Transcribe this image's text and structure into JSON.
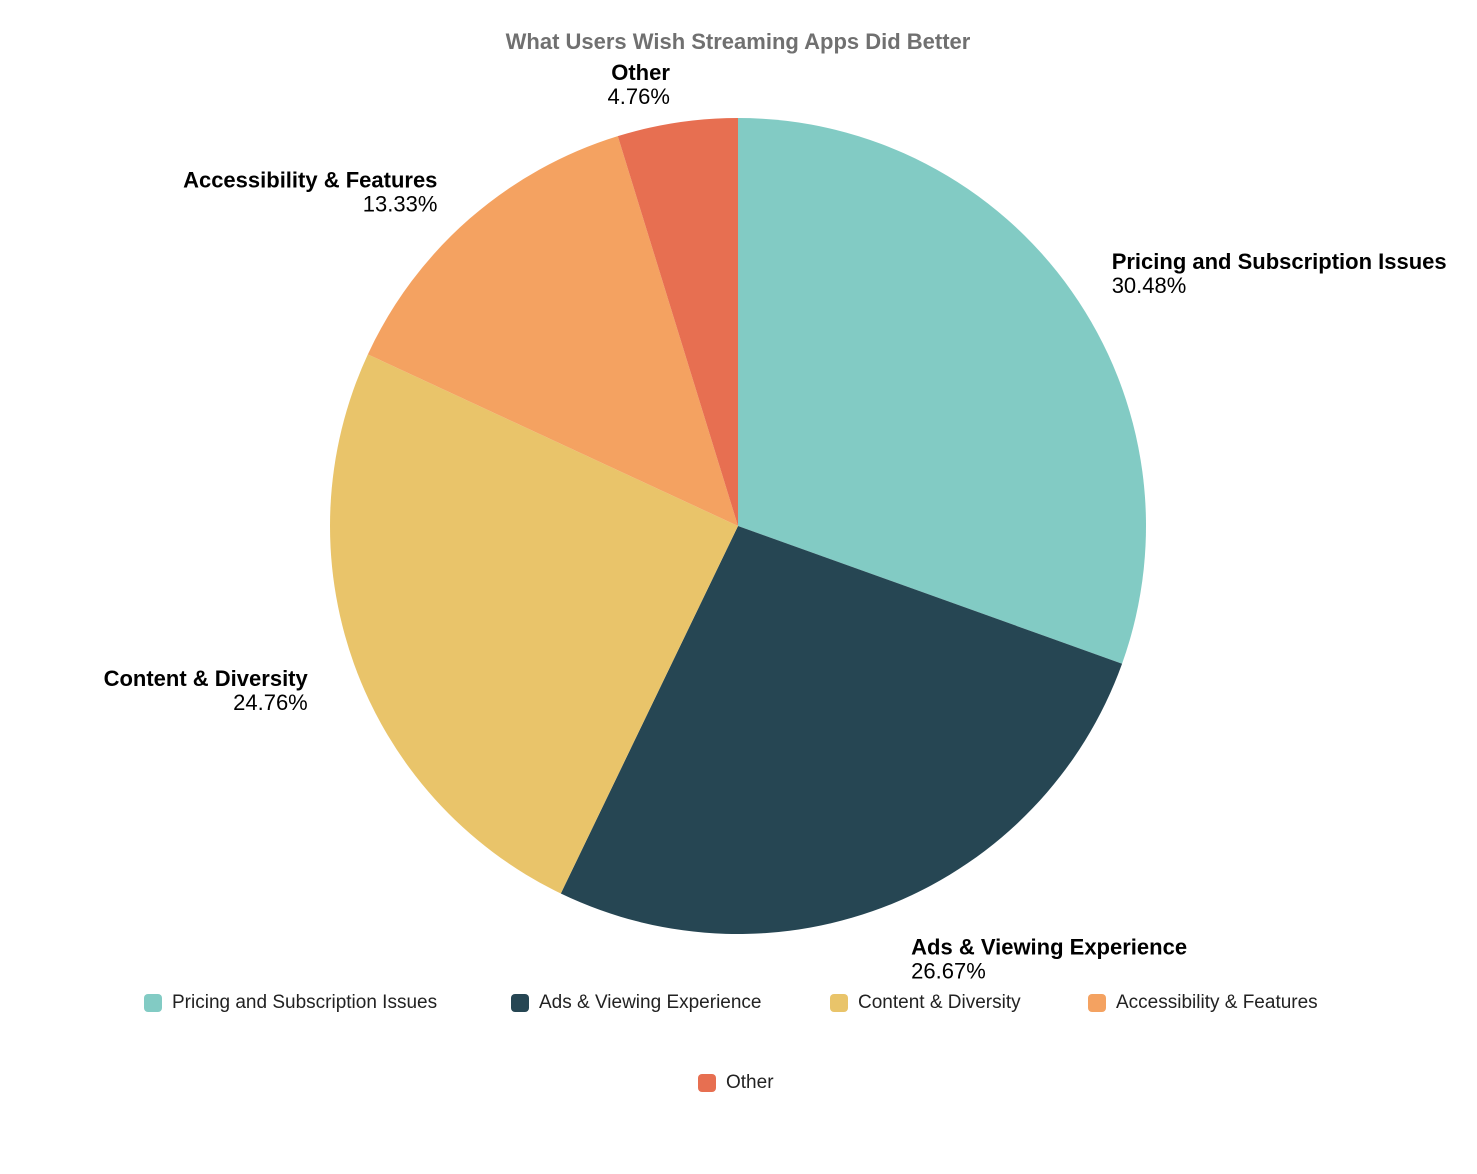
{
  "chart_data": {
    "type": "pie",
    "title": "What Users Wish Streaming Apps Did Better",
    "categories": [
      "Pricing and Subscription Issues",
      "Ads & Viewing Experience",
      "Content & Diversity",
      "Accessibility & Features",
      "Other"
    ],
    "values": [
      30.48,
      26.67,
      24.76,
      13.33,
      4.76
    ],
    "value_labels": [
      "30.48%",
      "26.67%",
      "24.76%",
      "13.33%",
      "4.76%"
    ],
    "colors": [
      "#82cbc4",
      "#264653",
      "#e9c46a",
      "#f4a261",
      "#e76f51"
    ],
    "legend": "bottom"
  }
}
